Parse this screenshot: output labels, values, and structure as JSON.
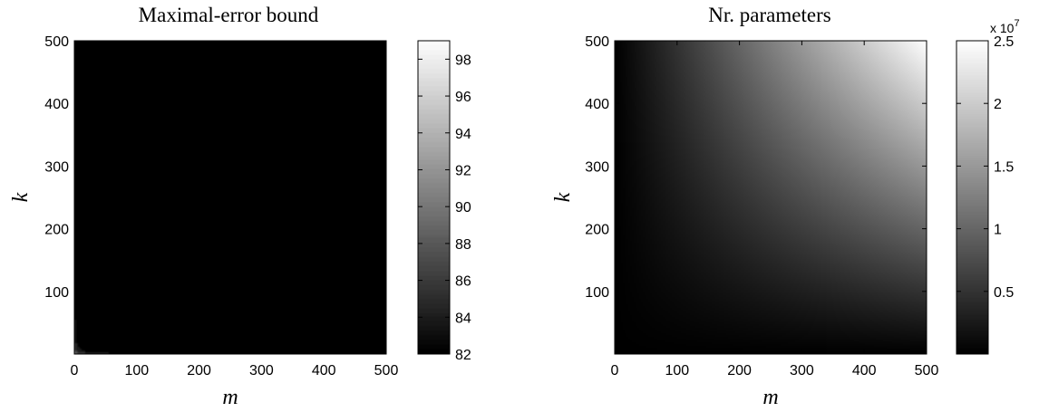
{
  "chart_data": [
    {
      "type": "heatmap",
      "title": "Maximal-error bound",
      "xlabel": "m",
      "ylabel": "k",
      "xlim": [
        0,
        500
      ],
      "ylim": [
        0,
        500
      ],
      "x_ticks": [
        0,
        100,
        200,
        300,
        400,
        500
      ],
      "y_ticks": [
        100,
        200,
        300,
        400,
        500
      ],
      "x_tick_labels": [
        "0",
        "100",
        "200",
        "300",
        "400",
        "500"
      ],
      "y_tick_labels": [
        "100",
        "200",
        "300",
        "400",
        "500"
      ],
      "style": "filled contours",
      "colormap": "gray",
      "colorbar": {
        "range": [
          82,
          99
        ],
        "ticks": [
          82,
          84,
          86,
          88,
          90,
          92,
          94,
          96,
          98
        ],
        "tick_labels": [
          "82",
          "84",
          "86",
          "88",
          "90",
          "92",
          "94",
          "96",
          "98"
        ]
      }
    },
    {
      "type": "heatmap",
      "title": "Nr. parameters",
      "xlabel": "m",
      "ylabel": "k",
      "xlim": [
        0,
        500
      ],
      "ylim": [
        0,
        500
      ],
      "x_ticks": [
        0,
        100,
        200,
        300,
        400,
        500
      ],
      "y_ticks": [
        100,
        200,
        300,
        400,
        500
      ],
      "x_tick_labels": [
        "0",
        "100",
        "200",
        "300",
        "400",
        "500"
      ],
      "y_tick_labels": [
        "100",
        "200",
        "300",
        "400",
        "500"
      ],
      "style": "smooth",
      "colormap": "gray",
      "colorbar": {
        "range": [
          0,
          2.5
        ],
        "ticks": [
          0.5,
          1,
          1.5,
          2,
          2.5
        ],
        "tick_labels": [
          "0.5",
          "1",
          "1.5",
          "2",
          "2.5"
        ],
        "multiplier": "x 10",
        "exponent": "7"
      }
    }
  ]
}
